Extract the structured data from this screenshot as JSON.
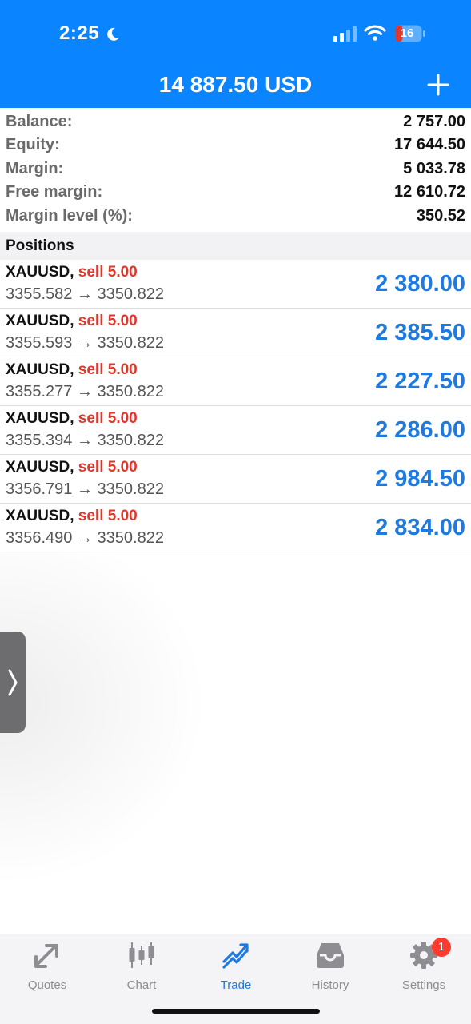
{
  "status_bar": {
    "time": "2:25",
    "battery": "16"
  },
  "header": {
    "title": "14 887.50 USD"
  },
  "summary": [
    {
      "label": "Balance:",
      "value": "2 757.00"
    },
    {
      "label": "Equity:",
      "value": "17 644.50"
    },
    {
      "label": "Margin:",
      "value": "5 033.78"
    },
    {
      "label": "Free margin:",
      "value": "12 610.72"
    },
    {
      "label": "Margin level (%):",
      "value": "350.52"
    }
  ],
  "positions_header": "Positions",
  "positions": [
    {
      "symbol": "XAUUSD,",
      "type": "sell 5.00",
      "prices": "3355.582 → 3350.822",
      "profit": "2 380.00"
    },
    {
      "symbol": "XAUUSD,",
      "type": "sell 5.00",
      "prices": "3355.593 → 3350.822",
      "profit": "2 385.50"
    },
    {
      "symbol": "XAUUSD,",
      "type": "sell 5.00",
      "prices": "3355.277 → 3350.822",
      "profit": "2 227.50"
    },
    {
      "symbol": "XAUUSD,",
      "type": "sell 5.00",
      "prices": "3355.394 → 3350.822",
      "profit": "2 286.00"
    },
    {
      "symbol": "XAUUSD,",
      "type": "sell 5.00",
      "prices": "3356.791 → 3350.822",
      "profit": "2 984.50"
    },
    {
      "symbol": "XAUUSD,",
      "type": "sell 5.00",
      "prices": "3356.490 → 3350.822",
      "profit": "2 834.00"
    }
  ],
  "tabs": [
    {
      "label": "Quotes",
      "icon": "quotes-icon"
    },
    {
      "label": "Chart",
      "icon": "chart-icon"
    },
    {
      "label": "Trade",
      "icon": "trade-icon",
      "active": true
    },
    {
      "label": "History",
      "icon": "history-icon"
    },
    {
      "label": "Settings",
      "icon": "gear-icon"
    }
  ],
  "settings_badge": "1",
  "colors": {
    "accent": "#0a84ff",
    "sell": "#e0372b",
    "profit": "#1f7ae0"
  }
}
